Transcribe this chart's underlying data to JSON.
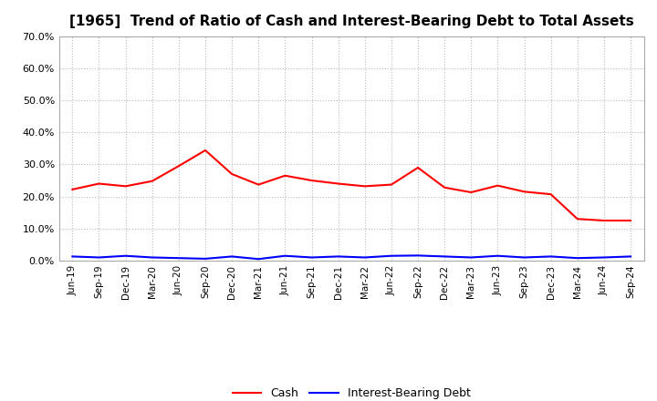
{
  "title": "[1965]  Trend of Ratio of Cash and Interest-Bearing Debt to Total Assets",
  "x_labels": [
    "Jun-19",
    "Sep-19",
    "Dec-19",
    "Mar-20",
    "Jun-20",
    "Sep-20",
    "Dec-20",
    "Mar-21",
    "Jun-21",
    "Sep-21",
    "Dec-21",
    "Mar-22",
    "Jun-22",
    "Sep-22",
    "Dec-22",
    "Mar-23",
    "Jun-23",
    "Sep-23",
    "Dec-23",
    "Mar-24",
    "Jun-24",
    "Sep-24"
  ],
  "cash": [
    0.222,
    0.24,
    0.232,
    0.248,
    0.295,
    0.344,
    0.27,
    0.237,
    0.265,
    0.25,
    0.24,
    0.232,
    0.237,
    0.29,
    0.228,
    0.213,
    0.234,
    0.215,
    0.207,
    0.13,
    0.125,
    0.125
  ],
  "interest_bearing_debt": [
    0.013,
    0.01,
    0.015,
    0.01,
    0.008,
    0.006,
    0.013,
    0.005,
    0.015,
    0.01,
    0.013,
    0.01,
    0.015,
    0.016,
    0.013,
    0.01,
    0.015,
    0.01,
    0.013,
    0.008,
    0.01,
    0.013
  ],
  "cash_color": "#ff0000",
  "debt_color": "#0000ff",
  "ylim": [
    0.0,
    0.7
  ],
  "yticks": [
    0.0,
    0.1,
    0.2,
    0.3,
    0.4,
    0.5,
    0.6,
    0.7
  ],
  "background_color": "#ffffff",
  "grid_color": "#bbbbbb",
  "title_fontsize": 11,
  "legend_cash": "Cash",
  "legend_debt": "Interest-Bearing Debt"
}
